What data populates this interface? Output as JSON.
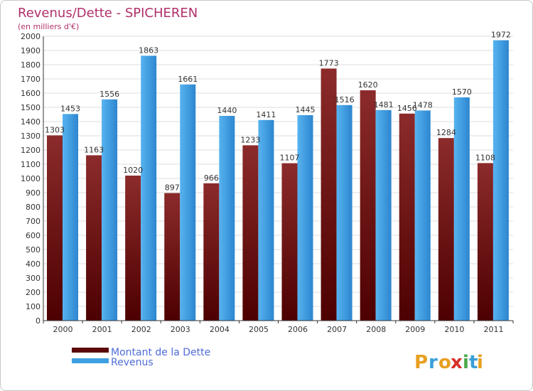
{
  "chart_data": {
    "type": "bar",
    "title": "Revenus/Dette - SPICHEREN",
    "subtitle": "(en milliers d'€)",
    "categories": [
      "2000",
      "2001",
      "2002",
      "2003",
      "2004",
      "2005",
      "2006",
      "2007",
      "2008",
      "2009",
      "2010",
      "2011"
    ],
    "series": [
      {
        "name": "Montant de la Dette",
        "color": "#7a1d1d",
        "values": [
          1303,
          1163,
          1020,
          897,
          966,
          1233,
          1107,
          1773,
          1620,
          1456,
          1284,
          1108
        ]
      },
      {
        "name": "Revenus",
        "color": "#3f9fe3",
        "values": [
          1453,
          1556,
          1863,
          1661,
          1440,
          1411,
          1445,
          1516,
          1481,
          1478,
          1570,
          1972
        ]
      }
    ],
    "ylim": [
      0,
      2000
    ],
    "ytick_step": 100,
    "grid": true,
    "legend": "bottom-left"
  },
  "logo": {
    "letters": [
      "P",
      "r",
      "o",
      "x",
      "i",
      "t",
      "i"
    ],
    "colors": [
      "#e8a020",
      "#3a9fd8",
      "#e8a020",
      "#d8302a",
      "#4aa84a",
      "#3a9fd8",
      "#e8a020"
    ]
  }
}
